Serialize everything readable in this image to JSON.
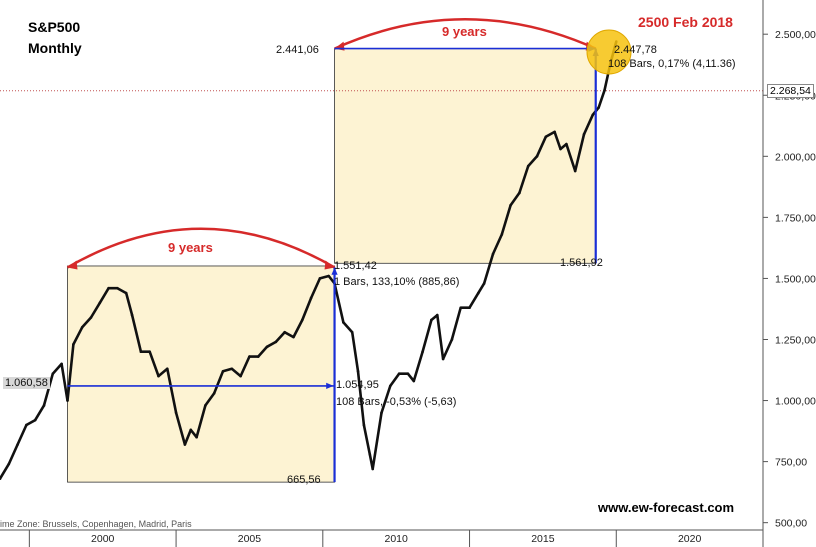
{
  "header": {
    "index": "S&P500",
    "timeframe": "Monthly",
    "forecast": "2500 Feb 2018",
    "website": "www.ew-forecast.com",
    "timezone": "ime Zone: Brussels, Copenhagen, Madrid, Paris"
  },
  "annotations": {
    "cycle1": {
      "years_label": "9 years",
      "top_left_value": "",
      "right_value": "1.551,42",
      "bottom_value": "665,56",
      "hline_left_value": "1.060,58",
      "hline_right_value": "1.054,95",
      "hline_stats": "108 Bars, -0,53% (-5,63)",
      "vline_stats": "1 Bars, 133,10% (885,86)"
    },
    "cycle2": {
      "years_label": "9 years",
      "top_left_value": "2.441,06",
      "top_right_value": "2.447,78",
      "top_stats": "108 Bars, 0,17% (4,11.36)",
      "bottom_right_value": "1.561,92"
    },
    "current_price": "2.268,54"
  },
  "colors": {
    "price": "#111111",
    "box_fill": "#fdf3d3",
    "arrow_blue": "#1a2ed6",
    "arc_red": "#d62a2a",
    "target_circle": "#f6c20e",
    "current_line": "#c05050"
  },
  "chart_data": {
    "type": "line",
    "title": "S&P500 Monthly",
    "xlabel": "",
    "ylabel": "",
    "x_range": [
      1996.5,
      2022.5
    ],
    "ylim": [
      470,
      2640
    ],
    "y_ticks": [
      "2.500,00",
      "2.250,00",
      "2.000,00",
      "1.750,00",
      "1.500,00",
      "1.250,00",
      "1.000,00",
      "750,00",
      "500,00"
    ],
    "y_tick_values": [
      2500,
      2250,
      2000,
      1750,
      1500,
      1250,
      1000,
      750,
      500
    ],
    "x_ticks": [
      "2000",
      "2005",
      "2010",
      "2015",
      "2020"
    ],
    "x_tick_values": [
      2000,
      2005,
      2010,
      2015,
      2020
    ],
    "series": [
      {
        "name": "S&P500",
        "x": [
          1996.5,
          1996.8,
          1997.1,
          1997.4,
          1997.7,
          1998.0,
          1998.3,
          1998.6,
          1998.8,
          1999.0,
          1999.3,
          1999.6,
          1999.9,
          2000.2,
          2000.5,
          2000.8,
          2001.0,
          2001.3,
          2001.6,
          2001.9,
          2002.2,
          2002.5,
          2002.8,
          2003.0,
          2003.2,
          2003.5,
          2003.8,
          2004.1,
          2004.4,
          2004.7,
          2005.0,
          2005.3,
          2005.6,
          2005.9,
          2006.2,
          2006.5,
          2006.8,
          2007.1,
          2007.4,
          2007.7,
          2007.9,
          2008.2,
          2008.5,
          2008.7,
          2008.9,
          2009.1,
          2009.2,
          2009.5,
          2009.8,
          2010.1,
          2010.4,
          2010.6,
          2010.9,
          2011.2,
          2011.4,
          2011.6,
          2011.9,
          2012.2,
          2012.5,
          2012.8,
          2013.0,
          2013.3,
          2013.6,
          2013.9,
          2014.2,
          2014.5,
          2014.8,
          2015.1,
          2015.4,
          2015.6,
          2015.8,
          2016.1,
          2016.4,
          2016.7,
          2016.9,
          2017.1,
          2017.3,
          2017.5
        ],
        "values": [
          680,
          740,
          820,
          900,
          920,
          980,
          1110,
          1150,
          1000,
          1230,
          1300,
          1340,
          1400,
          1460,
          1460,
          1440,
          1350,
          1200,
          1200,
          1100,
          1130,
          950,
          820,
          880,
          850,
          980,
          1030,
          1120,
          1130,
          1100,
          1180,
          1180,
          1220,
          1240,
          1280,
          1260,
          1330,
          1420,
          1500,
          1510,
          1480,
          1320,
          1280,
          1120,
          900,
          780,
          720,
          950,
          1060,
          1110,
          1110,
          1080,
          1200,
          1330,
          1350,
          1170,
          1250,
          1380,
          1380,
          1440,
          1480,
          1600,
          1680,
          1800,
          1850,
          1960,
          2000,
          2080,
          2100,
          2030,
          2050,
          1940,
          2090,
          2170,
          2200,
          2270,
          2380,
          2470
        ]
      }
    ],
    "grid": false,
    "legend": "none"
  }
}
